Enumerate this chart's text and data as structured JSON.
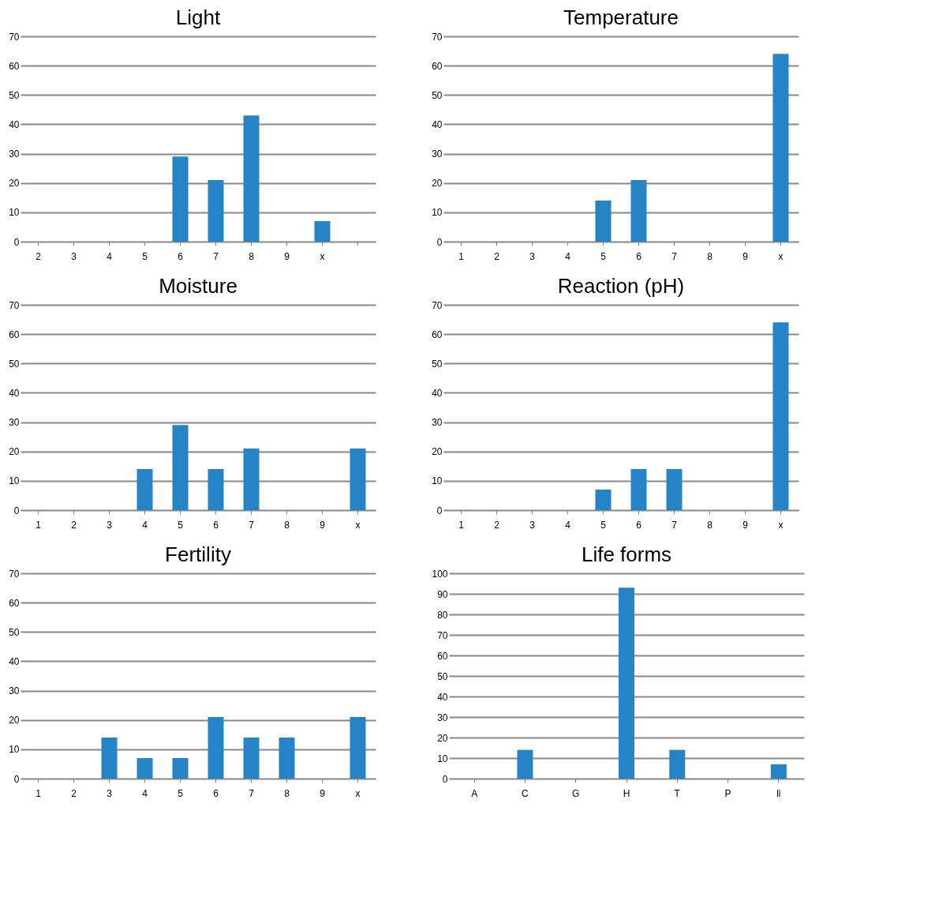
{
  "chart_data": [
    {
      "type": "bar",
      "title": "Light",
      "categories": [
        "2",
        "3",
        "4",
        "5",
        "6",
        "7",
        "8",
        "9",
        "x",
        null
      ],
      "values": [
        0,
        0,
        0,
        0,
        29,
        21,
        43,
        0,
        7,
        0
      ],
      "color": "#2683c6",
      "ylim": [
        0,
        70
      ],
      "yticks": [
        0,
        10,
        20,
        30,
        40,
        50,
        60,
        70
      ],
      "grid": "y"
    },
    {
      "type": "bar",
      "title": "Temperature",
      "categories": [
        "1",
        "2",
        "3",
        "4",
        "5",
        "6",
        "7",
        "8",
        "9",
        "x"
      ],
      "values": [
        0,
        0,
        0,
        0,
        14,
        21,
        0,
        0,
        0,
        64
      ],
      "color": "#2683c6",
      "ylim": [
        0,
        70
      ],
      "yticks": [
        0,
        10,
        20,
        30,
        40,
        50,
        60,
        70
      ],
      "grid": "y"
    },
    {
      "type": "bar",
      "title": "Moisture",
      "categories": [
        "1",
        "2",
        "3",
        "4",
        "5",
        "6",
        "7",
        "8",
        "9",
        "x"
      ],
      "values": [
        0,
        0,
        0,
        14,
        29,
        14,
        21,
        0,
        0,
        21
      ],
      "color": "#2683c6",
      "ylim": [
        0,
        70
      ],
      "yticks": [
        0,
        10,
        20,
        30,
        40,
        50,
        60,
        70
      ],
      "grid": "y"
    },
    {
      "type": "bar",
      "title": "Reaction (pH)",
      "categories": [
        "1",
        "2",
        "3",
        "4",
        "5",
        "6",
        "7",
        "8",
        "9",
        "x"
      ],
      "values": [
        0,
        0,
        0,
        0,
        7,
        14,
        14,
        0,
        0,
        64
      ],
      "color": "#2683c6",
      "ylim": [
        0,
        70
      ],
      "yticks": [
        0,
        10,
        20,
        30,
        40,
        50,
        60,
        70
      ],
      "grid": "y"
    },
    {
      "type": "bar",
      "title": "Fertility",
      "categories": [
        "1",
        "2",
        "3",
        "4",
        "5",
        "6",
        "7",
        "8",
        "9",
        "x"
      ],
      "values": [
        0,
        0,
        14,
        7,
        7,
        21,
        14,
        14,
        0,
        21
      ],
      "color": "#2683c6",
      "ylim": [
        0,
        70
      ],
      "yticks": [
        0,
        10,
        20,
        30,
        40,
        50,
        60,
        70
      ],
      "grid": "y"
    },
    {
      "type": "bar",
      "title": "Life forms",
      "categories": [
        "A",
        "C",
        "G",
        "H",
        "T",
        "P",
        "li"
      ],
      "values": [
        0,
        14,
        0,
        93,
        14,
        0,
        7
      ],
      "color": "#2683c6",
      "ylim": [
        0,
        100
      ],
      "yticks": [
        0,
        10,
        20,
        30,
        40,
        50,
        60,
        70,
        80,
        90,
        100
      ],
      "grid": "y"
    }
  ]
}
